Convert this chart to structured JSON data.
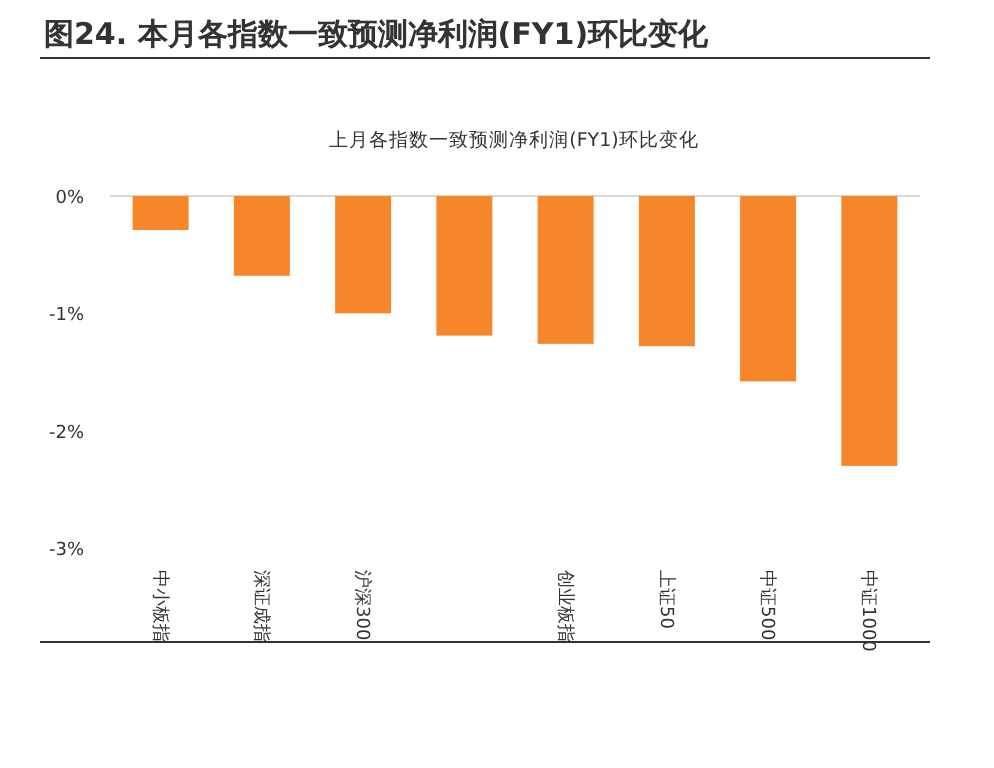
{
  "chart_data": {
    "type": "bar",
    "title": "图24. 本月各指数一致预测净利润(FY1)环比变化",
    "subtitle": "上月各指数一致预测净利润(FY1)环比变化",
    "categories": [
      "中小板指",
      "深证成指",
      "沪深300",
      null,
      "创业板指",
      "上证50",
      "中证500",
      "中证1000"
    ],
    "values": [
      -0.29,
      -0.68,
      -1.0,
      -1.19,
      -1.26,
      -1.28,
      -1.58,
      -2.3
    ],
    "color": "#f5872a",
    "ylim": [
      -3,
      0
    ],
    "yticks": [
      {
        "value": -3,
        "label": "-3%"
      },
      {
        "value": -2,
        "label": "-2%"
      },
      {
        "value": -1,
        "label": "-1%"
      },
      {
        "value": 0,
        "label": "0%"
      }
    ],
    "grid": false
  }
}
